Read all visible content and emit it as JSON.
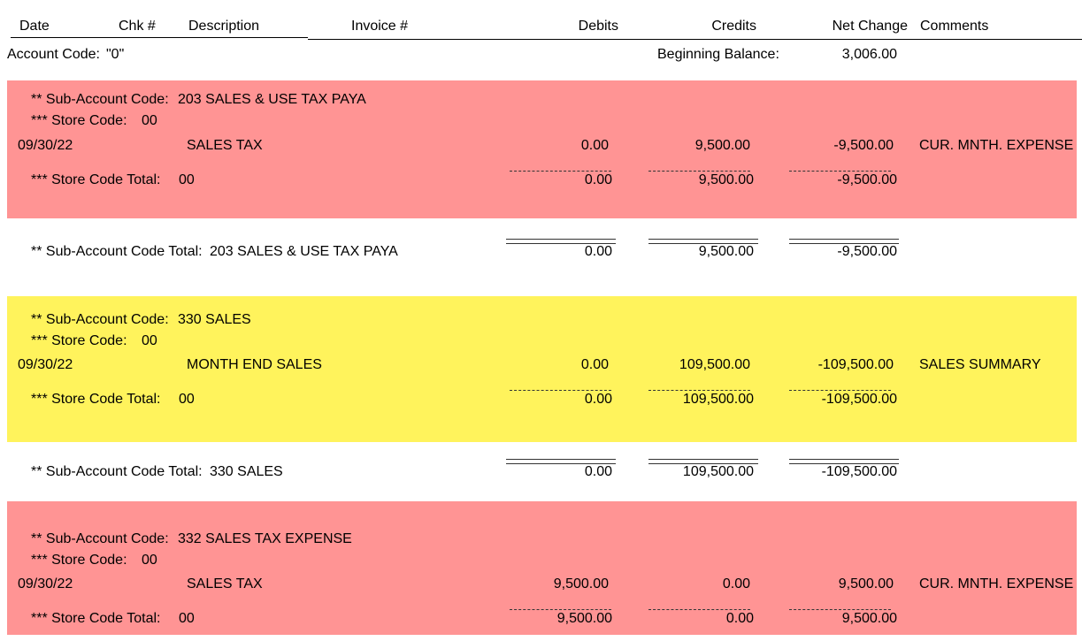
{
  "colors": {
    "pink": "#ff9494",
    "yellow": "#fff35c"
  },
  "header": {
    "date": "Date",
    "chk": "Chk #",
    "description": "Description",
    "invoice": "Invoice #",
    "debits": "Debits",
    "credits": "Credits",
    "net_change": "Net Change",
    "comments": "Comments"
  },
  "account": {
    "code_label": "Account Code:",
    "code_value": "\"0\"",
    "beginning_balance_label": "Beginning Balance:",
    "beginning_balance_value": "3,006.00"
  },
  "sections": [
    {
      "color": "pink",
      "sub_account_label": "** Sub-Account Code:",
      "sub_account_value": "203 SALES & USE TAX PAYA",
      "store_label": "*** Store Code:",
      "store_value": "00",
      "entry": {
        "date": "09/30/22",
        "description": "SALES TAX",
        "debits": "0.00",
        "credits": "9,500.00",
        "net_change": "-9,500.00",
        "comments": "CUR. MNTH. EXPENSE"
      },
      "store_total": {
        "label": "*** Store Code Total:",
        "store": "00",
        "debits": "0.00",
        "credits": "9,500.00",
        "net_change": "-9,500.00"
      },
      "sub_total": {
        "label": "** Sub-Account Code Total:",
        "name": "203 SALES & USE TAX PAYA",
        "debits": "0.00",
        "credits": "9,500.00",
        "net_change": "-9,500.00"
      }
    },
    {
      "color": "yellow",
      "sub_account_label": "** Sub-Account Code:",
      "sub_account_value": "330 SALES",
      "store_label": "*** Store Code:",
      "store_value": "00",
      "entry": {
        "date": "09/30/22",
        "description": "MONTH END SALES",
        "debits": "0.00",
        "credits": "109,500.00",
        "net_change": "-109,500.00",
        "comments": "SALES SUMMARY"
      },
      "store_total": {
        "label": "*** Store Code Total:",
        "store": "00",
        "debits": "0.00",
        "credits": "109,500.00",
        "net_change": "-109,500.00"
      },
      "sub_total": {
        "label": "** Sub-Account Code Total:",
        "name": "330 SALES",
        "debits": "0.00",
        "credits": "109,500.00",
        "net_change": "-109,500.00"
      }
    },
    {
      "color": "pink",
      "sub_account_label": "** Sub-Account Code:",
      "sub_account_value": "332 SALES TAX EXPENSE",
      "store_label": "*** Store Code:",
      "store_value": "00",
      "entry": {
        "date": "09/30/22",
        "description": "SALES TAX",
        "debits": "9,500.00",
        "credits": "0.00",
        "net_change": "9,500.00",
        "comments": "CUR. MNTH. EXPENSE"
      },
      "store_total": {
        "label": "*** Store Code Total:",
        "store": "00",
        "debits": "9,500.00",
        "credits": "0.00",
        "net_change": "9,500.00"
      }
    }
  ]
}
